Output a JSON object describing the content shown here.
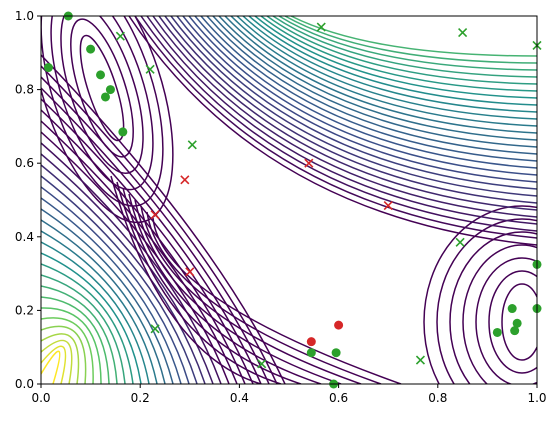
{
  "chart_data": {
    "type": "scatter",
    "xlim": [
      0,
      1
    ],
    "ylim": [
      0,
      1
    ],
    "xticks": [
      {
        "value": 0,
        "label": "0.0"
      },
      0.2,
      0.4,
      0.6,
      0.8,
      {
        "value": 1,
        "label": "1.0"
      }
    ],
    "yticks": [
      {
        "value": 0,
        "label": "0.0"
      },
      0.2,
      0.4,
      0.6,
      0.8,
      {
        "value": 1,
        "label": "1.0"
      }
    ],
    "series": [
      {
        "marker": "o",
        "color": "#2ca02c",
        "x": [
          0.015,
          0.055,
          0.1,
          0.12,
          0.13,
          0.14,
          0.165,
          0.545,
          0.595,
          0.59,
          0.92,
          0.95,
          0.955,
          0.96,
          1.0,
          1.0
        ],
        "y": [
          0.86,
          1.0,
          0.91,
          0.84,
          0.78,
          0.8,
          0.685,
          0.085,
          0.085,
          0.0,
          0.14,
          0.205,
          0.145,
          0.165,
          0.325,
          0.205
        ]
      },
      {
        "marker": "x",
        "color": "#2ca02c",
        "x": [
          0.16,
          0.22,
          0.305,
          0.565,
          0.85,
          1.0,
          0.845,
          0.23,
          0.445,
          0.765
        ],
        "y": [
          0.945,
          0.855,
          0.65,
          0.97,
          0.955,
          0.92,
          0.385,
          0.15,
          0.055,
          0.065
        ]
      },
      {
        "marker": "o",
        "color": "#d62728",
        "x": [
          0.545,
          0.6
        ],
        "y": [
          0.115,
          0.16
        ]
      },
      {
        "marker": "x",
        "color": "#d62728",
        "x": [
          0.29,
          0.23,
          0.3,
          0.54,
          0.7
        ],
        "y": [
          0.555,
          0.46,
          0.305,
          0.6,
          0.485
        ]
      }
    ]
  }
}
